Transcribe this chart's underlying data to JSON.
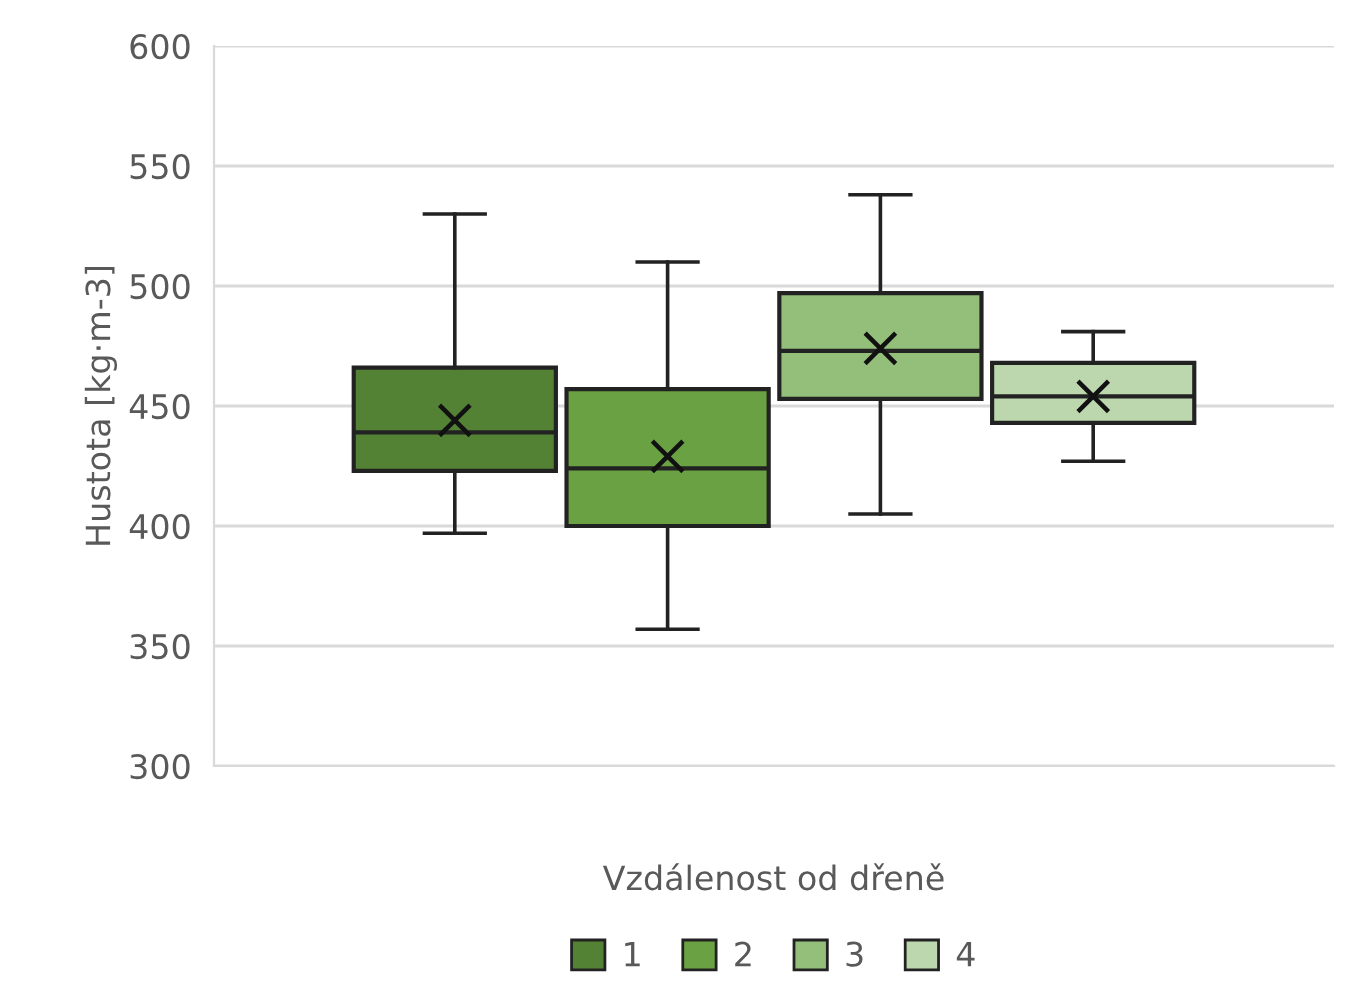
{
  "chart_data": {
    "type": "box",
    "xlabel": "Vzdálenost od dřeně",
    "ylabel": "Hustota [kg·m-3]",
    "categories": [
      null
    ],
    "ylim": [
      300,
      600
    ],
    "yticks": [
      300,
      350,
      400,
      450,
      500,
      550,
      600
    ],
    "grid": "y",
    "legend": "bottom",
    "series": [
      {
        "name": "1",
        "color": "#548235",
        "boxes": [
          {
            "low": 397,
            "q1": 423,
            "median": 439,
            "q3": 466,
            "high": 530,
            "mean": 444
          }
        ]
      },
      {
        "name": "2",
        "color": "#6aa142",
        "boxes": [
          {
            "low": 357,
            "q1": 400,
            "median": 424,
            "q3": 457,
            "high": 510,
            "mean": 429
          }
        ]
      },
      {
        "name": "3",
        "color": "#93bf7a",
        "boxes": [
          {
            "low": 405,
            "q1": 453,
            "median": 473,
            "q3": 497,
            "high": 538,
            "mean": 474
          }
        ]
      },
      {
        "name": "4",
        "color": "#bcd7ad",
        "boxes": [
          {
            "low": 427,
            "q1": 443,
            "median": 454,
            "q3": 468,
            "high": 481,
            "mean": 454
          }
        ]
      }
    ]
  }
}
